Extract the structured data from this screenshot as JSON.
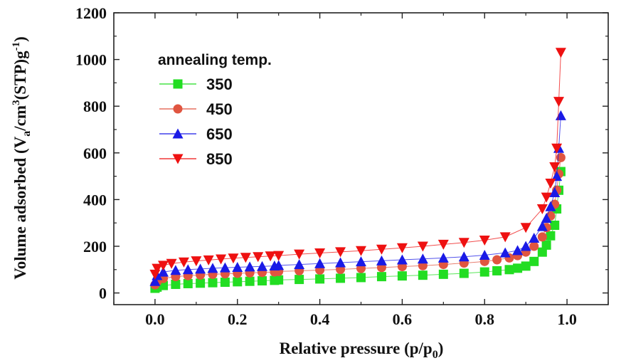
{
  "chart_data": {
    "type": "scatter",
    "title": "",
    "xlabel": "Relative pressure (p/p",
    "xlabel_sub": "0",
    "xlabel_tail": ")",
    "ylabel": {
      "p1": "Volume adsorbed (V",
      "sub": "a",
      "p2": "/cm",
      "sup1": "3",
      "p3": "(STP)g",
      "sup2": "-1",
      "p4": ")"
    },
    "xlim": [
      -0.1,
      1.1
    ],
    "ylim": [
      -50,
      1200
    ],
    "xticks": [
      "0.0",
      "0.2",
      "0.4",
      "0.6",
      "0.8",
      "1.0"
    ],
    "xtick_values": [
      0.0,
      0.2,
      0.4,
      0.6,
      0.8,
      1.0
    ],
    "yticks": [
      "0",
      "200",
      "400",
      "600",
      "800",
      "1000",
      "1200"
    ],
    "ytick_values": [
      0,
      200,
      400,
      600,
      800,
      1000,
      1200
    ],
    "legend_title": "annealing temp.",
    "legend_position": "top-left",
    "series": [
      {
        "name": "350",
        "marker": "square",
        "color": "#22dd22",
        "x": [
          0.0,
          0.005,
          0.02,
          0.05,
          0.08,
          0.11,
          0.14,
          0.17,
          0.2,
          0.23,
          0.26,
          0.29,
          0.3,
          0.35,
          0.4,
          0.45,
          0.5,
          0.55,
          0.6,
          0.65,
          0.7,
          0.75,
          0.8,
          0.83,
          0.86,
          0.88,
          0.9,
          0.92,
          0.94,
          0.95,
          0.96,
          0.97,
          0.975,
          0.98,
          0.985
        ],
        "y": [
          20,
          25,
          32,
          37,
          40,
          42,
          44,
          46,
          48,
          50,
          52,
          54,
          56,
          58,
          60,
          63,
          66,
          70,
          73,
          76,
          80,
          84,
          90,
          95,
          100,
          106,
          115,
          135,
          175,
          205,
          245,
          290,
          360,
          440,
          520
        ]
      },
      {
        "name": "450",
        "marker": "circle",
        "color": "#e05540",
        "x": [
          0.0,
          0.005,
          0.02,
          0.05,
          0.08,
          0.11,
          0.14,
          0.17,
          0.2,
          0.23,
          0.26,
          0.29,
          0.3,
          0.35,
          0.4,
          0.45,
          0.5,
          0.55,
          0.6,
          0.65,
          0.7,
          0.75,
          0.8,
          0.83,
          0.86,
          0.88,
          0.9,
          0.92,
          0.94,
          0.95,
          0.96,
          0.97,
          0.975,
          0.98,
          0.985
        ],
        "y": [
          35,
          48,
          62,
          70,
          74,
          77,
          80,
          82,
          84,
          86,
          88,
          90,
          92,
          95,
          98,
          101,
          105,
          109,
          113,
          117,
          122,
          128,
          135,
          142,
          150,
          160,
          175,
          200,
          240,
          280,
          330,
          380,
          440,
          510,
          580
        ]
      },
      {
        "name": "650",
        "marker": "triangle-up",
        "color": "#1a1ae6",
        "x": [
          0.0,
          0.005,
          0.02,
          0.05,
          0.08,
          0.11,
          0.14,
          0.17,
          0.2,
          0.23,
          0.26,
          0.29,
          0.3,
          0.35,
          0.4,
          0.45,
          0.5,
          0.55,
          0.6,
          0.65,
          0.7,
          0.75,
          0.8,
          0.85,
          0.88,
          0.9,
          0.92,
          0.94,
          0.95,
          0.96,
          0.97,
          0.975,
          0.98,
          0.985
        ],
        "y": [
          50,
          75,
          90,
          97,
          100,
          103,
          106,
          108,
          110,
          112,
          114,
          116,
          118,
          122,
          126,
          130,
          134,
          138,
          142,
          146,
          150,
          155,
          162,
          172,
          182,
          200,
          235,
          285,
          320,
          370,
          430,
          500,
          620,
          760
        ]
      },
      {
        "name": "850",
        "marker": "triangle-down",
        "color": "#ee1111",
        "x": [
          0.0,
          0.005,
          0.02,
          0.04,
          0.07,
          0.1,
          0.13,
          0.16,
          0.19,
          0.22,
          0.25,
          0.28,
          0.3,
          0.35,
          0.4,
          0.45,
          0.5,
          0.55,
          0.6,
          0.65,
          0.7,
          0.75,
          0.8,
          0.85,
          0.9,
          0.94,
          0.95,
          0.96,
          0.97,
          0.975,
          0.98,
          0.985
        ],
        "y": [
          80,
          105,
          118,
          126,
          132,
          137,
          141,
          145,
          149,
          152,
          155,
          158,
          160,
          166,
          171,
          176,
          181,
          187,
          193,
          200,
          208,
          216,
          226,
          240,
          280,
          360,
          410,
          470,
          540,
          620,
          820,
          1030
        ]
      }
    ]
  }
}
